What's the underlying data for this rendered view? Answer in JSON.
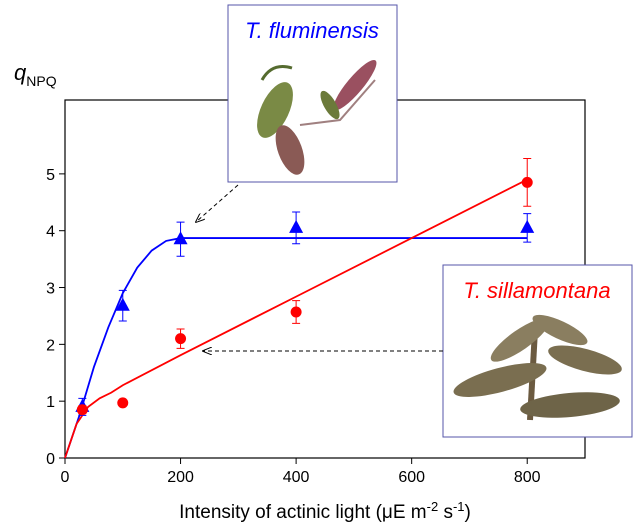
{
  "chart_data": {
    "type": "scatter",
    "ylabel": "q",
    "ylabel_sub": "NPQ",
    "xlabel_parts": [
      "Intensity of actinic light (μE m",
      "-2",
      " s",
      "-1",
      ")"
    ],
    "xlim": [
      0,
      900
    ],
    "xticks": [
      0,
      200,
      400,
      600,
      800
    ],
    "ylim": [
      0,
      6.3
    ],
    "yticks": [
      0,
      1,
      2,
      3,
      4,
      5
    ],
    "series": [
      {
        "name": "T. fluminensis",
        "color": "#0000ff",
        "marker": "triangle",
        "x": [
          30,
          100,
          200,
          400,
          800
        ],
        "values": [
          0.9,
          2.68,
          3.85,
          4.05,
          4.05
        ],
        "errors": [
          0.15,
          0.27,
          0.3,
          0.28,
          0.25
        ],
        "fit": {
          "x": [
            0,
            25,
            50,
            75,
            100,
            125,
            150,
            175,
            200,
            800
          ],
          "values": [
            0,
            0.75,
            1.6,
            2.3,
            2.9,
            3.35,
            3.65,
            3.82,
            3.87,
            3.87
          ]
        }
      },
      {
        "name": "T. sillamontana",
        "color": "#ff0000",
        "marker": "circle",
        "x": [
          30,
          100,
          200,
          400,
          800
        ],
        "values": [
          0.85,
          0.97,
          2.1,
          2.57,
          4.85
        ],
        "errors": [
          0.07,
          0,
          0.17,
          0.2,
          0.42
        ],
        "fit": {
          "x": [
            0,
            20,
            40,
            60,
            80,
            100,
            200,
            400,
            600,
            800
          ],
          "values": [
            0,
            0.6,
            0.9,
            1.05,
            1.15,
            1.28,
            1.81,
            2.84,
            3.87,
            4.9
          ]
        }
      }
    ]
  }
}
